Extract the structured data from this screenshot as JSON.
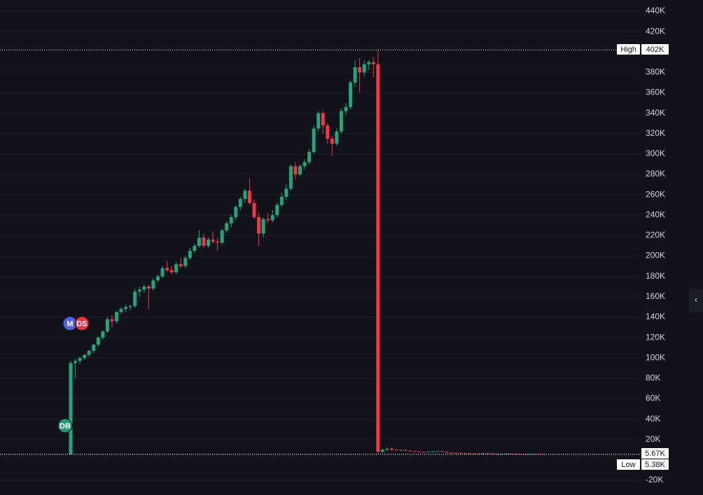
{
  "chart_data": {
    "type": "candlestick",
    "ylim": [
      -20000,
      440000
    ],
    "yticks": [
      {
        "value": -20000,
        "label": "-20K"
      },
      {
        "value": 20000,
        "label": "20K"
      },
      {
        "value": 40000,
        "label": "40K"
      },
      {
        "value": 60000,
        "label": "60K"
      },
      {
        "value": 80000,
        "label": "80K"
      },
      {
        "value": 100000,
        "label": "100K"
      },
      {
        "value": 120000,
        "label": "120K"
      },
      {
        "value": 140000,
        "label": "140K"
      },
      {
        "value": 160000,
        "label": "160K"
      },
      {
        "value": 180000,
        "label": "180K"
      },
      {
        "value": 200000,
        "label": "200K"
      },
      {
        "value": 220000,
        "label": "220K"
      },
      {
        "value": 240000,
        "label": "240K"
      },
      {
        "value": 260000,
        "label": "260K"
      },
      {
        "value": 280000,
        "label": "280K"
      },
      {
        "value": 300000,
        "label": "300K"
      },
      {
        "value": 320000,
        "label": "320K"
      },
      {
        "value": 340000,
        "label": "340K"
      },
      {
        "value": 360000,
        "label": "360K"
      },
      {
        "value": 380000,
        "label": "380K"
      },
      {
        "value": 420000,
        "label": "420K"
      },
      {
        "value": 440000,
        "label": "440K"
      }
    ],
    "grid": true,
    "up_color": "#22a57b",
    "down_color": "#f23645",
    "open": [
      5500,
      95000,
      97000,
      100000,
      103000,
      107000,
      113000,
      120000,
      126000,
      138000,
      136000,
      145000,
      148000,
      150000,
      151000,
      165000,
      167000,
      170000,
      168000,
      176000,
      180000,
      188000,
      186000,
      184000,
      192000,
      190000,
      198000,
      205000,
      210000,
      218000,
      210000,
      216000,
      214000,
      213000,
      225000,
      232000,
      238000,
      248000,
      256000,
      264000,
      252000,
      238000,
      222000,
      236000,
      235000,
      240000,
      250000,
      258000,
      266000,
      288000,
      280000,
      288000,
      292000,
      302000,
      325000,
      340000,
      328000,
      315000,
      310000,
      322000,
      342000,
      346000,
      370000,
      385000,
      380000,
      388000,
      390000,
      388000,
      8000,
      10000,
      11000,
      10000,
      9500,
      9800,
      9000,
      8500,
      8200,
      7800,
      7600,
      8200,
      8400,
      8600,
      8000,
      7200,
      7000,
      6800,
      6600,
      6500,
      6400,
      6300,
      6200,
      6500,
      6300,
      6000,
      5900,
      6000,
      6200,
      6000,
      5800,
      5700,
      5600,
      5700,
      5800,
      5700
    ],
    "high": [
      97000,
      99000,
      101000,
      104000,
      108000,
      114000,
      121000,
      127000,
      140000,
      142000,
      146000,
      150000,
      152000,
      152000,
      168000,
      170000,
      172000,
      172000,
      178000,
      182000,
      190000,
      195000,
      190000,
      194000,
      198000,
      200000,
      208000,
      212000,
      225000,
      222000,
      218000,
      224000,
      218000,
      227000,
      234000,
      240000,
      250000,
      258000,
      266000,
      276000,
      256000,
      242000,
      238000,
      242000,
      245000,
      252000,
      262000,
      270000,
      290000,
      292000,
      290000,
      295000,
      305000,
      328000,
      342000,
      342000,
      330000,
      318000,
      325000,
      345000,
      350000,
      372000,
      392000,
      394000,
      392000,
      392000,
      395000,
      402000,
      11000,
      12000,
      12000,
      10500,
      10000,
      10000,
      9500,
      9000,
      8500,
      8000,
      8400,
      8600,
      8800,
      8800,
      8200,
      7400,
      7200,
      7000,
      6800,
      6700,
      6600,
      6500,
      6600,
      6700,
      6400,
      6200,
      6100,
      6300,
      6400,
      6100,
      6000,
      5900,
      5800,
      5900,
      5900,
      5800
    ],
    "low": [
      5500,
      80000,
      94000,
      98000,
      101000,
      105000,
      111000,
      118000,
      124000,
      130000,
      134000,
      143000,
      145000,
      147000,
      149000,
      160000,
      164000,
      148000,
      166000,
      174000,
      178000,
      184000,
      182000,
      182000,
      188000,
      188000,
      196000,
      203000,
      208000,
      208000,
      208000,
      212000,
      205000,
      211000,
      223000,
      228000,
      235000,
      245000,
      252000,
      250000,
      236000,
      210000,
      218000,
      232000,
      233000,
      238000,
      248000,
      255000,
      264000,
      275000,
      278000,
      285000,
      290000,
      300000,
      322000,
      320000,
      310000,
      298000,
      308000,
      320000,
      338000,
      344000,
      366000,
      360000,
      376000,
      382000,
      375000,
      6000,
      7000,
      9000,
      9000,
      9000,
      9000,
      8800,
      8000,
      8000,
      7500,
      7400,
      7500,
      8000,
      8200,
      7800,
      7000,
      6800,
      6600,
      6400,
      6300,
      6200,
      6100,
      6000,
      6100,
      6200,
      5900,
      5800,
      5700,
      5900,
      5900,
      5600,
      5500,
      5380,
      5500,
      5600,
      5600,
      5600
    ],
    "close": [
      95000,
      97000,
      100000,
      103000,
      107000,
      113000,
      120000,
      126000,
      138000,
      136000,
      145000,
      148000,
      150000,
      151000,
      165000,
      167000,
      170000,
      168000,
      176000,
      180000,
      188000,
      186000,
      184000,
      192000,
      190000,
      198000,
      205000,
      210000,
      218000,
      210000,
      216000,
      214000,
      213000,
      225000,
      232000,
      238000,
      248000,
      256000,
      264000,
      252000,
      238000,
      222000,
      236000,
      235000,
      240000,
      250000,
      258000,
      266000,
      288000,
      280000,
      288000,
      292000,
      302000,
      325000,
      340000,
      328000,
      315000,
      310000,
      322000,
      342000,
      346000,
      370000,
      385000,
      380000,
      388000,
      390000,
      388000,
      8000,
      10000,
      11000,
      10000,
      9500,
      9800,
      9000,
      8500,
      8200,
      7800,
      7600,
      8200,
      8400,
      8600,
      8000,
      7200,
      7000,
      6800,
      6600,
      6500,
      6400,
      6300,
      6200,
      6500,
      6300,
      6000,
      5900,
      6000,
      6200,
      6000,
      5800,
      5700,
      5600,
      5700,
      5800,
      5700,
      5670
    ],
    "price_lines": [
      {
        "name": "High",
        "value": 402000,
        "label": "402K"
      },
      {
        "name": "Low",
        "value": 5380,
        "label": "5.38K"
      },
      {
        "value": 5670,
        "label": "5.67K"
      }
    ],
    "markers": [
      {
        "label": "M",
        "color": "#4b63e6"
      },
      {
        "label": "DS",
        "color": "#e8323f"
      },
      {
        "label": "DB",
        "color": "#1f9a72"
      }
    ],
    "collapse_icon": "‹"
  }
}
